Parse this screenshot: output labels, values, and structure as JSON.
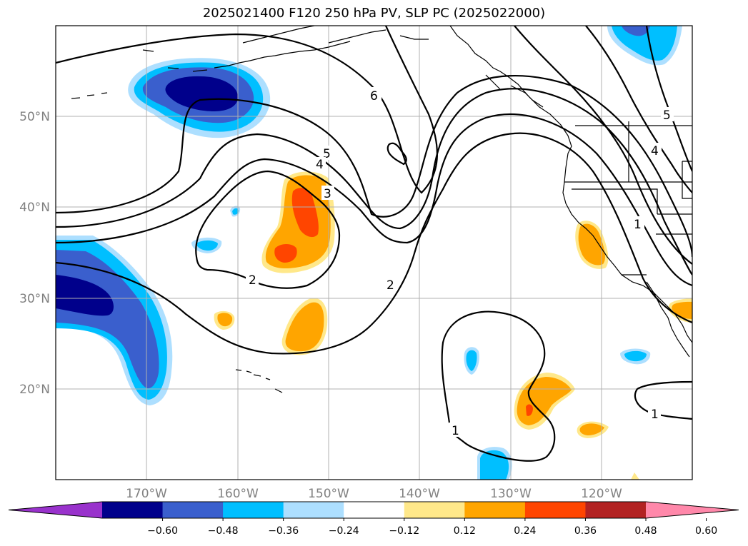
{
  "title": "2025021400 F120 250 hPa PV, SLP PC (2025022000)",
  "lat_labels": [
    "50°N",
    "40°N",
    "30°N",
    "20°N"
  ],
  "lon_labels": [
    "170°W",
    "160°W",
    "150°W",
    "140°W",
    "130°W",
    "120°W"
  ],
  "colorbar": {
    "ticks": [
      "−0.60",
      "−0.48",
      "−0.36",
      "−0.24",
      "−0.12",
      "0.12",
      "0.24",
      "0.36",
      "0.48",
      "0.60"
    ],
    "colors": [
      "#9932CC",
      "#00008B",
      "#3A5FCD",
      "#00BFFF",
      "#ADDFFF",
      "#FFFFFF",
      "#FFE88A",
      "#FFA500",
      "#FF4500",
      "#B22222",
      "#FF88AA"
    ]
  },
  "contour_labels": [
    "6",
    "5",
    "4",
    "3",
    "2",
    "2",
    "1",
    "1",
    "5",
    "4",
    "1"
  ],
  "colors": {
    "dark_blue": "#00008B",
    "medium_blue": "#3A5FCD",
    "cyan": "#00BFFF",
    "light_blue": "#ADDFFF",
    "yellow": "#FFE88A",
    "orange": "#FFA500",
    "red_orange": "#FF4500",
    "grid": "#b0b0b0"
  }
}
